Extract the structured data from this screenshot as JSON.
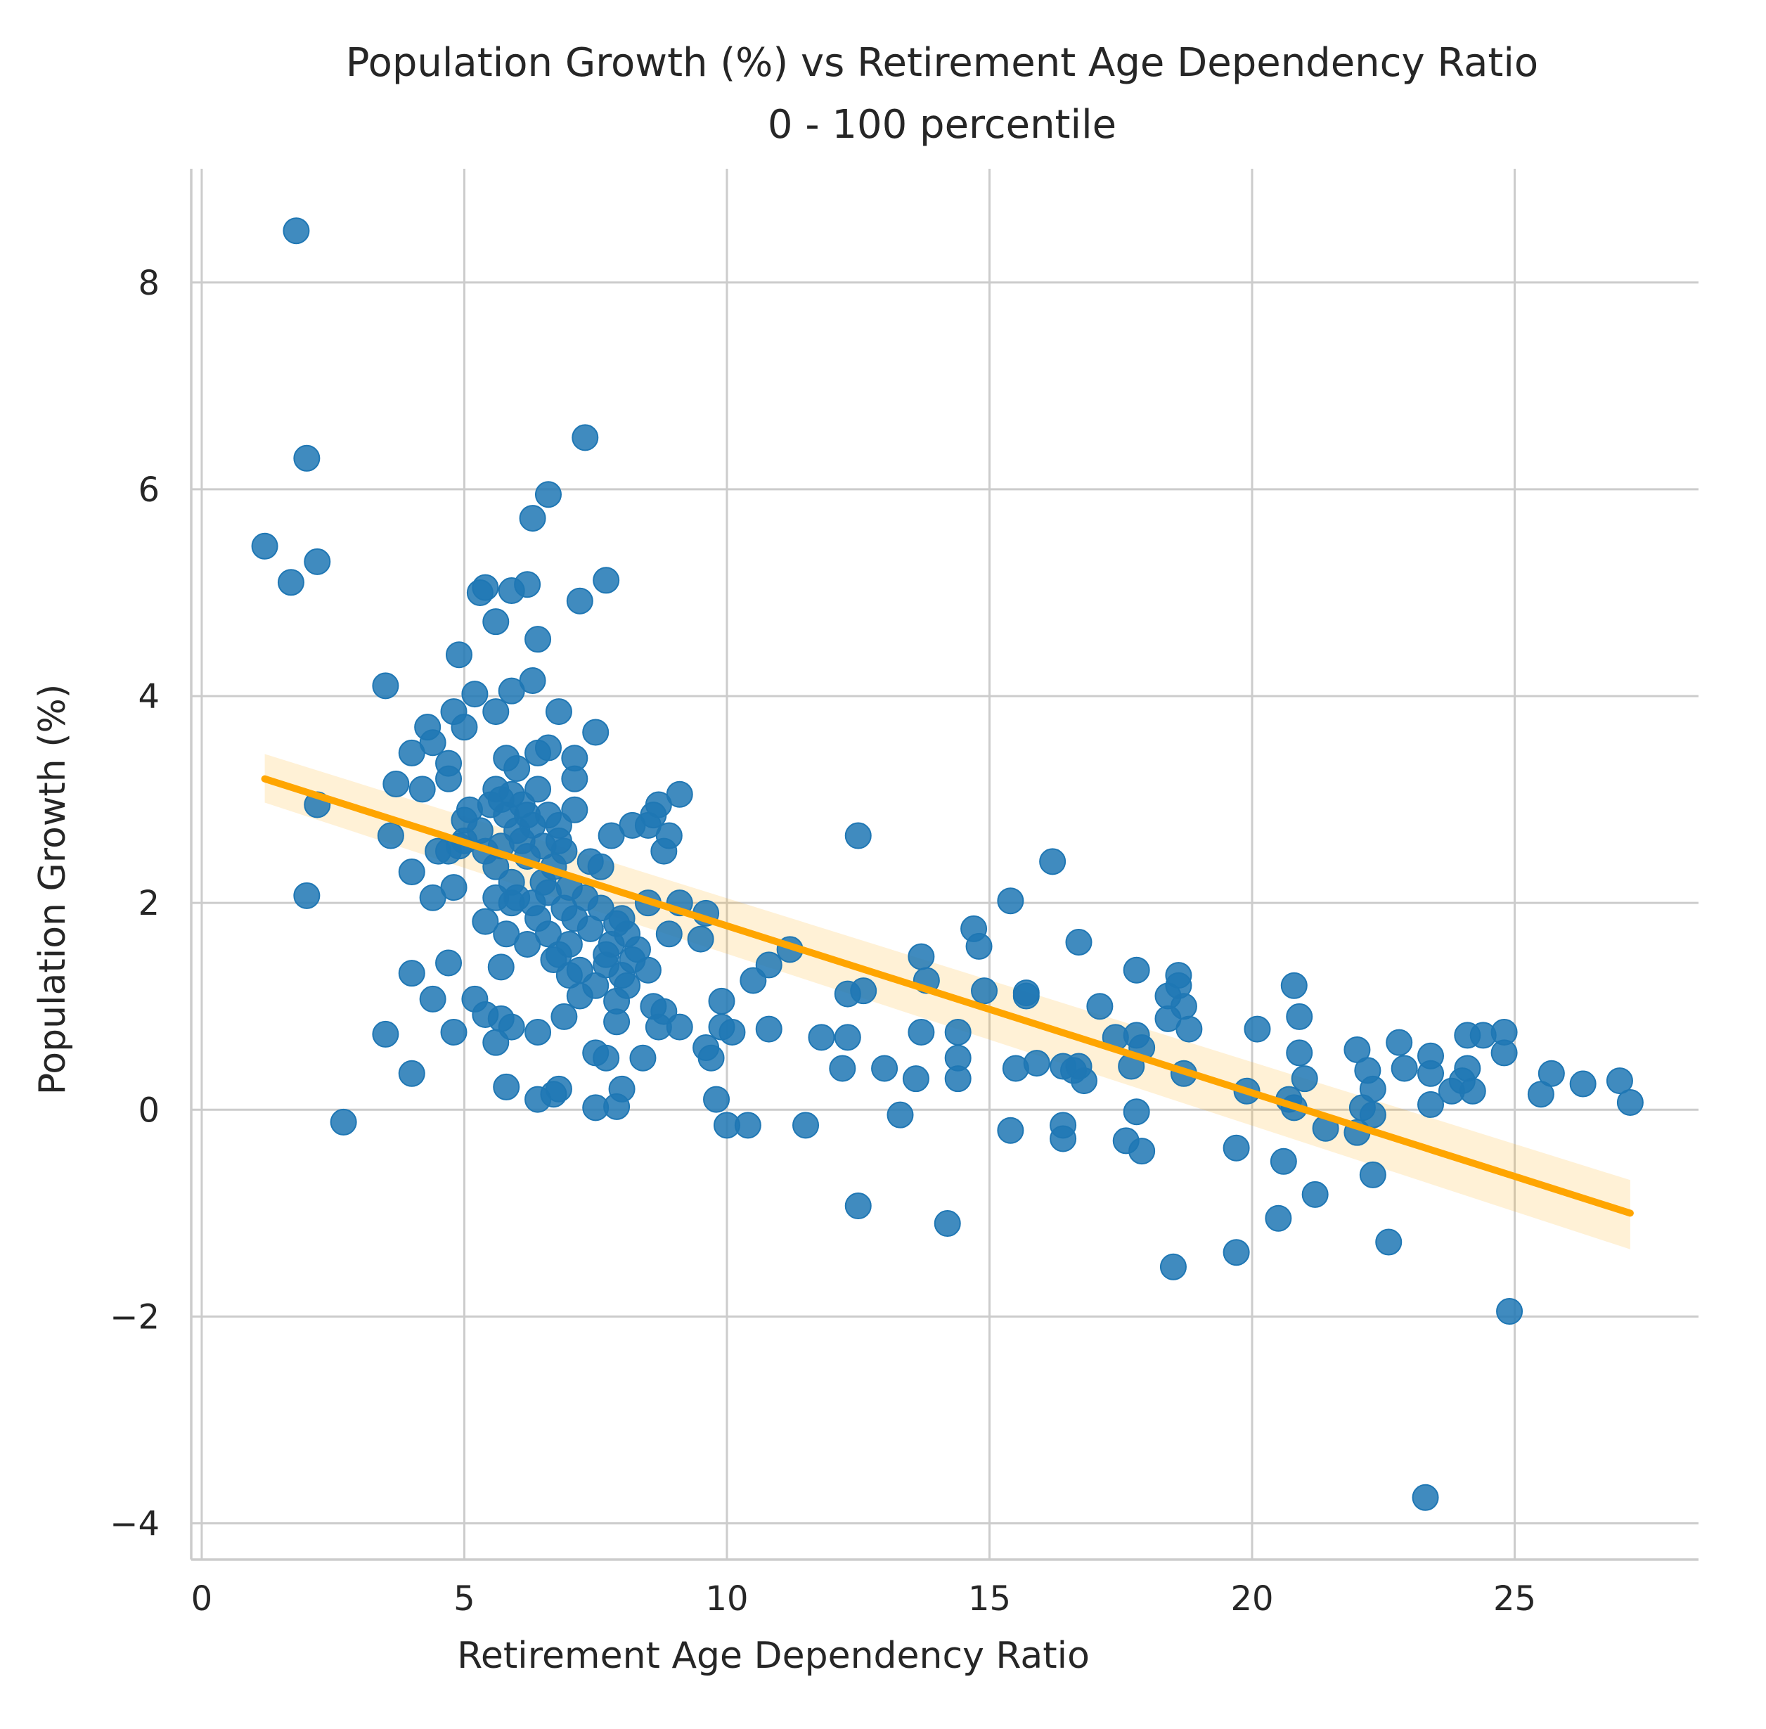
{
  "chart_data": {
    "type": "scatter",
    "title": "Population Growth (%) vs Retirement Age Dependency Ratio",
    "subtitle": "0 - 100 percentile",
    "xlabel": "Retirement Age Dependency Ratio",
    "ylabel": "Population Growth (%)",
    "xlim": [
      -0.2,
      28.5
    ],
    "ylim": [
      -4.35,
      9.1
    ],
    "xticks": [
      0,
      5,
      10,
      15,
      20,
      25
    ],
    "xtick_labels": [
      "0",
      "5",
      "10",
      "15",
      "20",
      "25"
    ],
    "yticks": [
      -4,
      -2,
      0,
      2,
      4,
      6,
      8
    ],
    "ytick_labels": [
      "−4",
      "−2",
      "0",
      "2",
      "4",
      "6",
      "8"
    ],
    "grid": true,
    "point_color": "#1f77b4",
    "regression_color": "#ffa500",
    "regression": {
      "x": [
        1.2,
        27.2
      ],
      "y": [
        3.2,
        -1.0
      ],
      "ci_lower": [
        2.97,
        -1.35
      ],
      "ci_upper": [
        3.44,
        -0.68
      ]
    },
    "points": [
      [
        1.8,
        8.5
      ],
      [
        2.0,
        6.3
      ],
      [
        1.2,
        5.45
      ],
      [
        1.7,
        5.1
      ],
      [
        2.2,
        5.3
      ],
      [
        2.2,
        2.95
      ],
      [
        2.0,
        2.07
      ],
      [
        2.7,
        -0.12
      ],
      [
        3.5,
        4.1
      ],
      [
        3.6,
        2.65
      ],
      [
        3.5,
        0.73
      ],
      [
        3.7,
        3.15
      ],
      [
        4.0,
        3.45
      ],
      [
        4.0,
        2.3
      ],
      [
        4.0,
        1.32
      ],
      [
        4.0,
        0.35
      ],
      [
        4.2,
        3.1
      ],
      [
        4.3,
        3.7
      ],
      [
        4.4,
        3.55
      ],
      [
        4.4,
        2.05
      ],
      [
        4.4,
        1.07
      ],
      [
        4.5,
        2.5
      ],
      [
        4.7,
        3.35
      ],
      [
        4.7,
        3.2
      ],
      [
        4.7,
        2.5
      ],
      [
        4.7,
        1.42
      ],
      [
        4.8,
        3.85
      ],
      [
        4.8,
        0.75
      ],
      [
        4.8,
        2.15
      ],
      [
        4.9,
        4.4
      ],
      [
        5.0,
        3.7
      ],
      [
        5.0,
        2.8
      ],
      [
        5.0,
        2.6
      ],
      [
        5.2,
        4.02
      ],
      [
        5.2,
        1.07
      ],
      [
        5.3,
        5.0
      ],
      [
        5.4,
        5.05
      ],
      [
        5.4,
        1.82
      ],
      [
        5.4,
        0.92
      ],
      [
        5.6,
        4.72
      ],
      [
        5.6,
        3.85
      ],
      [
        5.6,
        0.65
      ],
      [
        5.6,
        2.05
      ],
      [
        5.7,
        0.88
      ],
      [
        5.7,
        3.0
      ],
      [
        5.7,
        1.38
      ],
      [
        5.8,
        1.7
      ],
      [
        5.8,
        0.22
      ],
      [
        5.8,
        3.4
      ],
      [
        5.9,
        5.02
      ],
      [
        5.9,
        4.05
      ],
      [
        5.9,
        0.8
      ],
      [
        5.9,
        2.0
      ],
      [
        6.0,
        3.3
      ],
      [
        6.1,
        2.6
      ],
      [
        6.2,
        5.08
      ],
      [
        6.2,
        1.6
      ],
      [
        6.3,
        5.72
      ],
      [
        6.3,
        4.15
      ],
      [
        6.4,
        0.1
      ],
      [
        6.4,
        0.75
      ],
      [
        6.4,
        3.45
      ],
      [
        6.4,
        1.85
      ],
      [
        6.4,
        4.55
      ],
      [
        6.5,
        2.2
      ],
      [
        6.6,
        5.95
      ],
      [
        6.6,
        3.5
      ],
      [
        6.6,
        1.7
      ],
      [
        6.7,
        0.15
      ],
      [
        6.8,
        3.85
      ],
      [
        6.8,
        0.2
      ],
      [
        6.8,
        1.5
      ],
      [
        6.8,
        2.6
      ],
      [
        6.9,
        0.9
      ],
      [
        7.0,
        1.3
      ],
      [
        7.1,
        3.4
      ],
      [
        7.1,
        3.2
      ],
      [
        7.1,
        2.9
      ],
      [
        7.2,
        4.92
      ],
      [
        7.2,
        1.1
      ],
      [
        7.3,
        6.5
      ],
      [
        7.4,
        2.4
      ],
      [
        7.5,
        3.65
      ],
      [
        7.5,
        0.55
      ],
      [
        7.5,
        0.02
      ],
      [
        7.6,
        2.35
      ],
      [
        7.7,
        5.12
      ],
      [
        7.7,
        0.5
      ],
      [
        7.7,
        1.5
      ],
      [
        7.8,
        2.65
      ],
      [
        7.9,
        1.8
      ],
      [
        7.9,
        0.03
      ],
      [
        7.9,
        1.05
      ],
      [
        7.9,
        0.85
      ],
      [
        8.0,
        0.2
      ],
      [
        8.0,
        1.3
      ],
      [
        8.1,
        1.7
      ],
      [
        8.2,
        2.75
      ],
      [
        8.3,
        1.55
      ],
      [
        8.4,
        0.5
      ],
      [
        8.5,
        2.0
      ],
      [
        8.5,
        2.75
      ],
      [
        8.5,
        1.35
      ],
      [
        8.6,
        2.85
      ],
      [
        8.6,
        1.0
      ],
      [
        8.7,
        2.95
      ],
      [
        8.7,
        0.8
      ],
      [
        8.8,
        2.5
      ],
      [
        8.8,
        0.95
      ],
      [
        8.9,
        1.7
      ],
      [
        8.9,
        2.65
      ],
      [
        9.1,
        3.05
      ],
      [
        9.1,
        2.0
      ],
      [
        9.1,
        0.8
      ],
      [
        9.5,
        1.65
      ],
      [
        9.6,
        0.6
      ],
      [
        9.6,
        1.9
      ],
      [
        9.7,
        0.5
      ],
      [
        9.8,
        0.1
      ],
      [
        9.9,
        1.05
      ],
      [
        9.9,
        0.8
      ],
      [
        10.0,
        -0.15
      ],
      [
        10.1,
        0.75
      ],
      [
        10.4,
        -0.15
      ],
      [
        10.5,
        1.25
      ],
      [
        10.8,
        1.4
      ],
      [
        10.8,
        0.78
      ],
      [
        11.2,
        1.55
      ],
      [
        11.5,
        -0.15
      ],
      [
        11.8,
        0.7
      ],
      [
        12.2,
        0.4
      ],
      [
        12.3,
        0.7
      ],
      [
        12.3,
        1.12
      ],
      [
        12.5,
        2.65
      ],
      [
        12.5,
        -0.93
      ],
      [
        12.6,
        1.15
      ],
      [
        13.0,
        0.4
      ],
      [
        13.3,
        -0.05
      ],
      [
        13.6,
        0.3
      ],
      [
        13.7,
        1.48
      ],
      [
        13.7,
        0.75
      ],
      [
        13.8,
        1.25
      ],
      [
        14.2,
        -1.1
      ],
      [
        14.4,
        0.75
      ],
      [
        14.4,
        0.5
      ],
      [
        14.4,
        0.3
      ],
      [
        14.7,
        1.75
      ],
      [
        14.8,
        1.58
      ],
      [
        14.9,
        1.15
      ],
      [
        15.4,
        2.02
      ],
      [
        15.4,
        -0.2
      ],
      [
        15.5,
        0.4
      ],
      [
        15.7,
        1.13
      ],
      [
        15.7,
        1.1
      ],
      [
        15.9,
        0.45
      ],
      [
        16.2,
        2.4
      ],
      [
        16.4,
        0.42
      ],
      [
        16.4,
        -0.15
      ],
      [
        16.4,
        -0.28
      ],
      [
        16.6,
        0.38
      ],
      [
        16.7,
        1.62
      ],
      [
        16.7,
        0.42
      ],
      [
        16.8,
        0.28
      ],
      [
        17.1,
        1.0
      ],
      [
        17.4,
        0.7
      ],
      [
        17.6,
        -0.3
      ],
      [
        17.7,
        0.42
      ],
      [
        17.8,
        1.35
      ],
      [
        17.8,
        0.72
      ],
      [
        17.8,
        -0.02
      ],
      [
        17.9,
        -0.4
      ],
      [
        17.9,
        0.6
      ],
      [
        18.4,
        1.1
      ],
      [
        18.4,
        0.88
      ],
      [
        18.5,
        -1.52
      ],
      [
        18.6,
        1.3
      ],
      [
        18.6,
        1.2
      ],
      [
        18.7,
        1.0
      ],
      [
        18.7,
        0.35
      ],
      [
        18.8,
        0.78
      ],
      [
        19.7,
        -0.37
      ],
      [
        19.7,
        -1.38
      ],
      [
        19.9,
        0.18
      ],
      [
        20.1,
        0.78
      ],
      [
        20.5,
        -1.05
      ],
      [
        20.6,
        -0.5
      ],
      [
        20.7,
        0.1
      ],
      [
        20.8,
        0.02
      ],
      [
        20.8,
        1.2
      ],
      [
        20.9,
        0.9
      ],
      [
        20.9,
        0.55
      ],
      [
        21.0,
        0.3
      ],
      [
        21.2,
        -0.82
      ],
      [
        21.4,
        -0.18
      ],
      [
        22.0,
        0.58
      ],
      [
        22.0,
        -0.22
      ],
      [
        22.1,
        0.02
      ],
      [
        22.2,
        0.38
      ],
      [
        22.3,
        0.2
      ],
      [
        22.3,
        -0.05
      ],
      [
        22.3,
        -0.63
      ],
      [
        22.6,
        -1.28
      ],
      [
        22.8,
        0.65
      ],
      [
        22.9,
        0.4
      ],
      [
        23.3,
        -3.75
      ],
      [
        23.4,
        0.52
      ],
      [
        23.4,
        0.35
      ],
      [
        23.4,
        0.05
      ],
      [
        23.8,
        0.18
      ],
      [
        24.0,
        0.28
      ],
      [
        24.1,
        0.4
      ],
      [
        24.1,
        0.72
      ],
      [
        24.2,
        0.18
      ],
      [
        24.4,
        0.72
      ],
      [
        24.8,
        0.55
      ],
      [
        24.8,
        0.75
      ],
      [
        24.9,
        -1.95
      ],
      [
        25.5,
        0.15
      ],
      [
        25.7,
        0.35
      ],
      [
        26.3,
        0.25
      ],
      [
        27.0,
        0.28
      ],
      [
        27.2,
        0.07
      ],
      [
        5.1,
        2.9
      ],
      [
        5.3,
        2.7
      ],
      [
        5.5,
        2.95
      ],
      [
        5.6,
        3.1
      ],
      [
        5.7,
        2.55
      ],
      [
        5.8,
        2.85
      ],
      [
        5.9,
        3.05
      ],
      [
        6.0,
        2.7
      ],
      [
        6.1,
        2.95
      ],
      [
        6.2,
        2.45
      ],
      [
        6.3,
        2.75
      ],
      [
        6.4,
        3.1
      ],
      [
        6.5,
        2.55
      ],
      [
        6.6,
        2.85
      ],
      [
        6.7,
        2.35
      ],
      [
        6.8,
        2.75
      ],
      [
        6.9,
        2.5
      ],
      [
        7.0,
        2.15
      ],
      [
        5.6,
        2.35
      ],
      [
        5.9,
        2.2
      ],
      [
        6.0,
        2.05
      ],
      [
        6.3,
        2.0
      ],
      [
        6.6,
        2.1
      ],
      [
        6.9,
        1.95
      ],
      [
        7.1,
        1.85
      ],
      [
        7.3,
        2.05
      ],
      [
        7.4,
        1.75
      ],
      [
        7.6,
        1.95
      ],
      [
        7.8,
        1.6
      ],
      [
        8.0,
        1.85
      ],
      [
        8.2,
        1.45
      ],
      [
        6.7,
        1.45
      ],
      [
        7.0,
        1.6
      ],
      [
        7.2,
        1.35
      ],
      [
        7.5,
        1.2
      ],
      [
        7.7,
        1.4
      ],
      [
        8.1,
        1.2
      ],
      [
        6.2,
        2.85
      ],
      [
        5.4,
        2.5
      ],
      [
        4.9,
        2.55
      ]
    ]
  }
}
